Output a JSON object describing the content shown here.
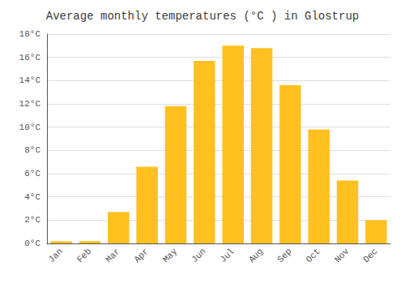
{
  "chart_data": {
    "type": "bar",
    "title": "Average monthly temperatures (°C ) in Glostrup",
    "categories": [
      "Jan",
      "Feb",
      "Mar",
      "Apr",
      "May",
      "Jun",
      "Jul",
      "Aug",
      "Sep",
      "Oct",
      "Nov",
      "Dec"
    ],
    "values": [
      0.2,
      0.2,
      2.7,
      6.6,
      11.8,
      15.7,
      17.0,
      16.8,
      13.6,
      9.8,
      5.4,
      2.0
    ],
    "color": "#FFC020",
    "ylim": [
      0,
      18
    ],
    "yticks": [
      {
        "value": 0,
        "label": "0°C"
      },
      {
        "value": 2,
        "label": "2°C"
      },
      {
        "value": 4,
        "label": "4°C"
      },
      {
        "value": 6,
        "label": "6°C"
      },
      {
        "value": 8,
        "label": "8°C"
      },
      {
        "value": 10,
        "label": "10°C"
      },
      {
        "value": 12,
        "label": "12°C"
      },
      {
        "value": 14,
        "label": "14°C"
      },
      {
        "value": 16,
        "label": "16°C"
      },
      {
        "value": 18,
        "label": "18°C"
      }
    ],
    "grid": true
  }
}
